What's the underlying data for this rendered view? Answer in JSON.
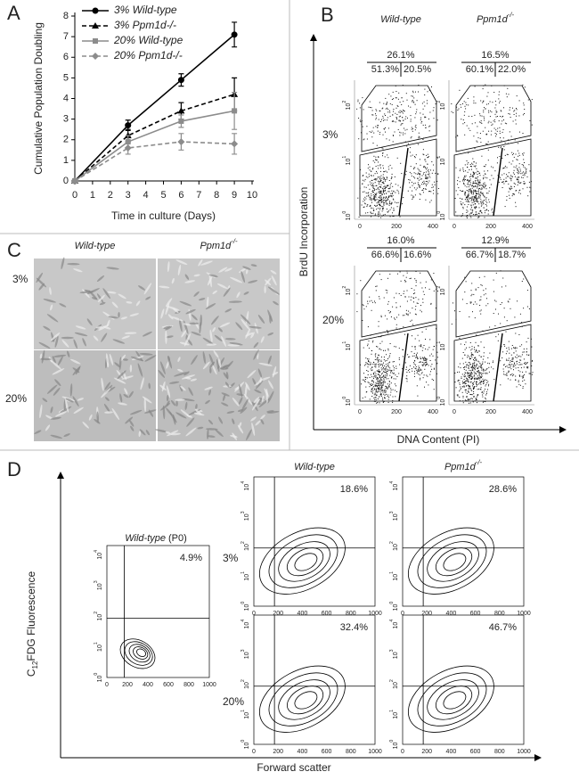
{
  "panel_labels": [
    "A",
    "B",
    "C",
    "D"
  ],
  "chart_data": {
    "type": "line",
    "x_label": "Time in culture (Days)",
    "y_label": "Cumulative Population Doubling",
    "x": [
      0,
      3,
      6,
      9
    ],
    "xlim": [
      0,
      10
    ],
    "xticks": [
      0,
      1,
      2,
      3,
      4,
      5,
      6,
      7,
      8,
      9,
      10
    ],
    "ylim": [
      0,
      8
    ],
    "yticks": [
      0,
      1,
      2,
      3,
      4,
      5,
      6,
      7,
      8
    ],
    "series": [
      {
        "name": "3% Wild-type",
        "color": "#000000",
        "dash": false,
        "marker": "circle",
        "values": [
          0,
          2.7,
          4.9,
          7.1
        ],
        "errors": [
          0,
          0.25,
          0.3,
          0.6
        ]
      },
      {
        "name": "3% Ppm1d-/-",
        "color": "#000000",
        "dash": true,
        "marker": "triangle",
        "values": [
          0,
          2.2,
          3.4,
          4.2
        ],
        "errors": [
          0,
          0.3,
          0.4,
          0.8
        ]
      },
      {
        "name": "20% Wild-type",
        "color": "#8c8c8c",
        "dash": false,
        "marker": "square",
        "values": [
          0,
          1.9,
          2.9,
          3.4
        ],
        "errors": [
          0,
          0.3,
          0.3,
          0.9
        ]
      },
      {
        "name": "20% Ppm1d-/-",
        "color": "#8c8c8c",
        "dash": true,
        "marker": "diamond",
        "values": [
          0,
          1.6,
          1.9,
          1.8
        ],
        "errors": [
          0,
          0.3,
          0.4,
          0.5
        ]
      }
    ]
  },
  "panel_b": {
    "columns": [
      {
        "text": "Wild-type"
      },
      {
        "text": "Ppm1d",
        "sup": "-/-"
      }
    ],
    "rows": [
      "3%",
      "20%"
    ],
    "y_label": "BrdU Incorporation",
    "x_label": "DNA Content (PI)",
    "x_ticks": [
      0,
      200,
      400
    ],
    "y_tick_base": "10",
    "y_tick_exps": [
      "0",
      "1",
      "2"
    ],
    "plots": [
      [
        {
          "top": "26.1%",
          "left": "51.3%",
          "right": "20.5%"
        },
        {
          "top": "16.5%",
          "left": "60.1%",
          "right": "22.0%"
        }
      ],
      [
        {
          "top": "16.0%",
          "left": "66.6%",
          "right": "16.6%"
        },
        {
          "top": "12.9%",
          "left": "66.7%",
          "right": "18.7%"
        }
      ]
    ]
  },
  "panel_c": {
    "columns": [
      {
        "text": "Wild-type"
      },
      {
        "text": "Ppm1d",
        "sup": "-/-"
      }
    ],
    "rows": [
      "3%",
      "20%"
    ]
  },
  "panel_d": {
    "y_label": {
      "pre": "C",
      "sub": "12",
      "post": "FDG Fluorescence"
    },
    "x_label": "Forward scatter",
    "p0": {
      "title": {
        "text": "Wild-type",
        "suffix": "(P0)"
      },
      "pct": "4.9%"
    },
    "columns": [
      {
        "text": "Wild-type"
      },
      {
        "text": "Ppm1d",
        "sup": "-/-"
      }
    ],
    "rows": [
      "3%",
      "20%"
    ],
    "pcts": [
      [
        "18.6%",
        "28.6%"
      ],
      [
        "32.4%",
        "46.7%"
      ]
    ],
    "x_ticks": [
      0,
      200,
      400,
      600,
      800,
      1000
    ],
    "y_tick_base": "10",
    "y_tick_exps": [
      "0",
      "1",
      "2",
      "3",
      "4"
    ]
  }
}
